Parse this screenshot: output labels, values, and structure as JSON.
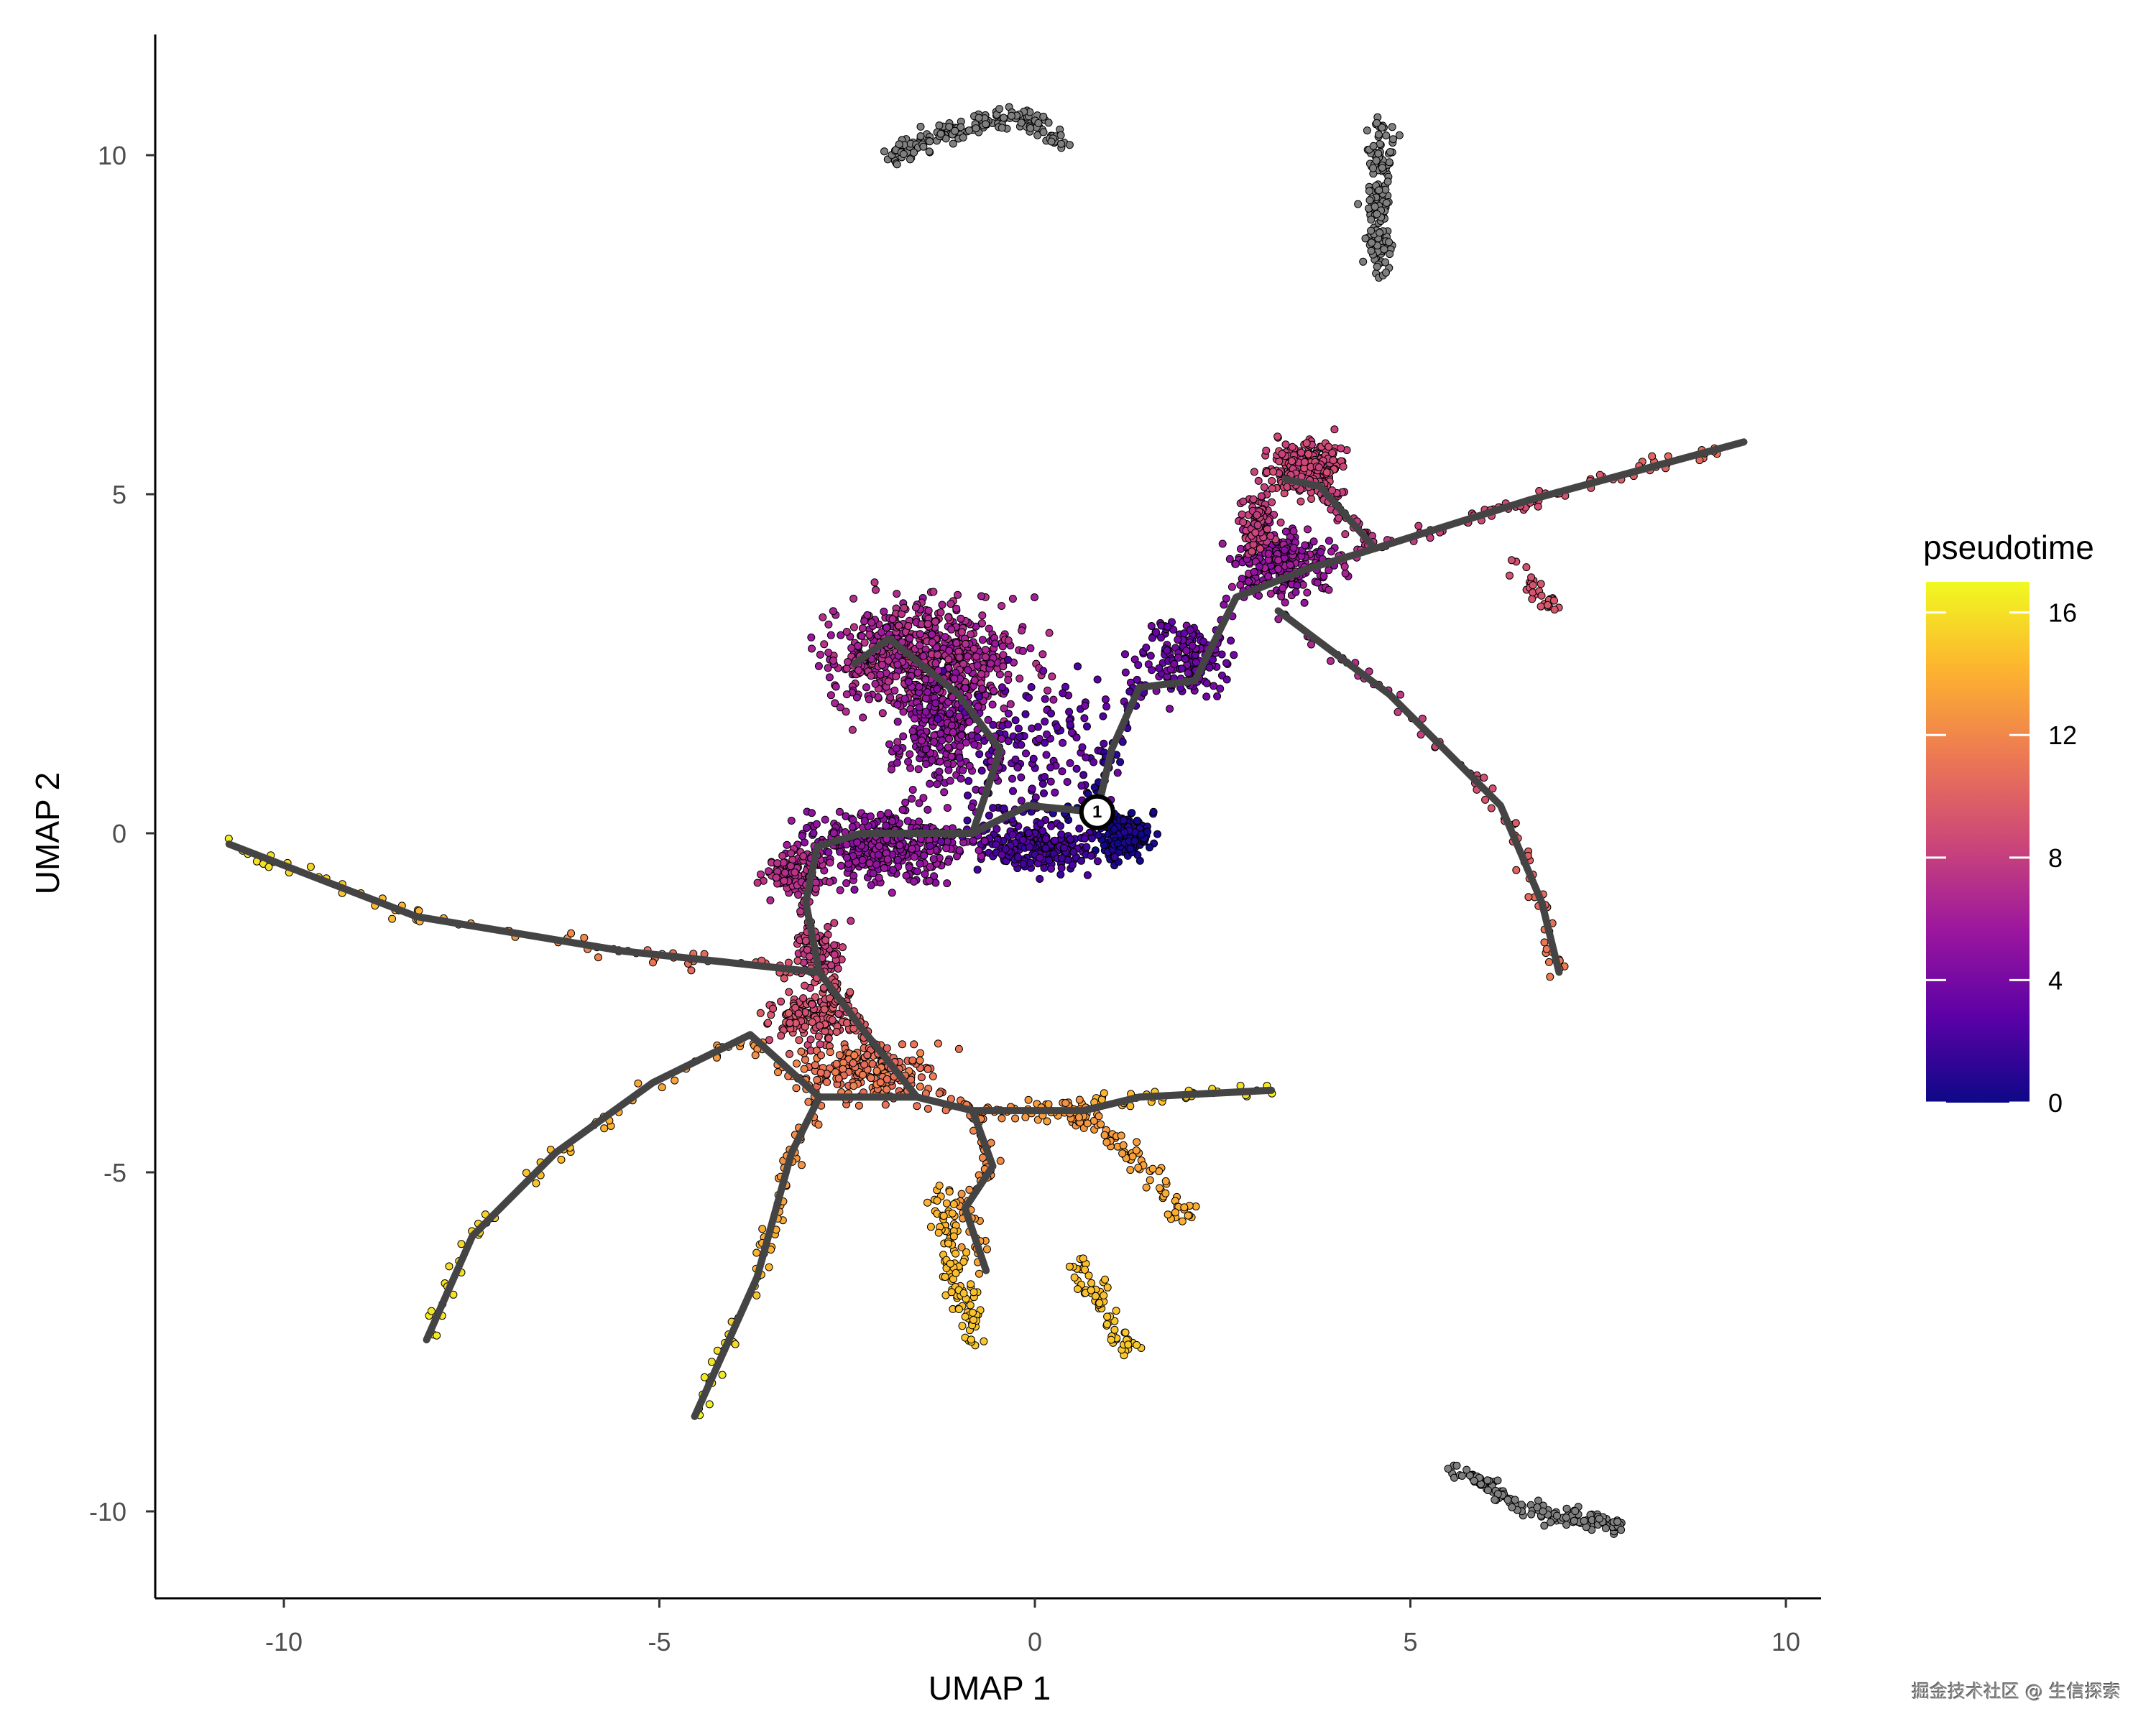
{
  "chart_data": {
    "type": "scatter",
    "title": "",
    "xlabel": "UMAP 1",
    "ylabel": "UMAP 2",
    "xlim": [
      -11.8,
      10.5
    ],
    "ylim": [
      -11.2,
      11.8
    ],
    "x_ticks": [
      -10,
      -5,
      0,
      5,
      10
    ],
    "y_ticks": [
      10,
      5,
      0,
      -5,
      -10
    ],
    "x_tick_labels": [
      "-10",
      "-5",
      "0",
      "5",
      "10"
    ],
    "y_tick_labels": [
      "10",
      "5",
      "0",
      "-5",
      "-10"
    ],
    "grid": false,
    "legend": {
      "title": "pseudotime",
      "placement": "right",
      "type": "colorbar",
      "range": [
        0,
        17
      ],
      "ticks": [
        0,
        4,
        8,
        12,
        16
      ],
      "tick_labels": [
        "0",
        "4",
        "8",
        "12",
        "16"
      ],
      "colormap": "plasma",
      "colors": [
        "#0d0887",
        "#5c01a6",
        "#9c179e",
        "#cc4778",
        "#ed7953",
        "#fdb42f",
        "#f0f921"
      ]
    },
    "na_color": "#7f7f7f",
    "trajectory_color": "#444444",
    "root_node": {
      "label": "1",
      "x": 0.83,
      "y": 0.31
    },
    "trajectory_edges": [
      {
        "path": [
          [
            0.83,
            0.31
          ],
          [
            -0.09,
            0.41
          ],
          [
            -0.83,
            0.0
          ],
          [
            -2.31,
            0.0
          ],
          [
            -2.9,
            -0.2
          ],
          [
            -3.05,
            -1.02
          ],
          [
            -2.87,
            -2.05
          ]
        ],
        "pseudotime": [
          0,
          9
        ],
        "line": true
      },
      {
        "path": [
          [
            -2.87,
            -2.05
          ],
          [
            -2.31,
            -2.87
          ],
          [
            -1.57,
            -3.89
          ]
        ],
        "pseudotime": [
          9,
          11
        ],
        "line": true
      },
      {
        "path": [
          [
            -2.87,
            -2.05
          ],
          [
            -5.46,
            -1.74
          ],
          [
            -8.23,
            -1.23
          ],
          [
            -10.73,
            -0.16
          ]
        ],
        "pseudotime": [
          9,
          16.5
        ],
        "line": true
      },
      {
        "path": [
          [
            -0.83,
            0.0
          ],
          [
            -0.46,
            1.23
          ],
          [
            -1.02,
            2.05
          ],
          [
            -1.94,
            2.87
          ],
          [
            -2.4,
            2.5
          ]
        ],
        "pseudotime": [
          4,
          7
        ],
        "line": true
      },
      {
        "path": [
          [
            0.83,
            0.31
          ],
          [
            1.02,
            1.23
          ],
          [
            1.39,
            2.15
          ],
          [
            2.13,
            2.25
          ],
          [
            2.68,
            3.48
          ],
          [
            3.61,
            3.89
          ],
          [
            4.53,
            4.2
          ]
        ],
        "pseudotime": [
          0,
          7.5
        ],
        "line": true
      },
      {
        "path": [
          [
            4.53,
            4.2
          ],
          [
            6.57,
            4.91
          ],
          [
            9.44,
            5.77
          ]
        ],
        "pseudotime": [
          7.5,
          11
        ],
        "line": true
      },
      {
        "path": [
          [
            4.53,
            4.2
          ],
          [
            3.79,
            5.12
          ],
          [
            3.33,
            5.22
          ]
        ],
        "pseudotime": [
          7.5,
          8.5
        ],
        "line": true
      },
      {
        "path": [
          [
            3.24,
            3.28
          ],
          [
            4.72,
            2.05
          ],
          [
            6.2,
            0.41
          ],
          [
            6.75,
            -1.02
          ],
          [
            6.98,
            -2.05
          ]
        ],
        "pseudotime": [
          6,
          11.5
        ],
        "line": true
      },
      {
        "path": [
          [
            -1.57,
            -3.89
          ],
          [
            -2.87,
            -3.89
          ],
          [
            -3.79,
            -2.97
          ],
          [
            -5.09,
            -3.68
          ],
          [
            -6.38,
            -4.71
          ],
          [
            -7.49,
            -5.94
          ],
          [
            -8.1,
            -7.47
          ]
        ],
        "pseudotime": [
          11,
          16.5
        ],
        "line": true
      },
      {
        "path": [
          [
            -2.87,
            -3.89
          ],
          [
            -3.24,
            -4.71
          ],
          [
            -3.7,
            -6.55
          ],
          [
            -4.53,
            -8.6
          ]
        ],
        "pseudotime": [
          11.5,
          17
        ],
        "line": true
      },
      {
        "path": [
          [
            -1.57,
            -3.89
          ],
          [
            -0.83,
            -4.09
          ],
          [
            -0.56,
            -4.91
          ],
          [
            -0.93,
            -5.53
          ],
          [
            -0.65,
            -6.45
          ]
        ],
        "pseudotime": [
          11,
          13.5
        ],
        "line": true
      },
      {
        "path": [
          [
            -0.83,
            -4.09
          ],
          [
            0.65,
            -4.09
          ],
          [
            1.39,
            -3.89
          ],
          [
            3.15,
            -3.79
          ]
        ],
        "pseudotime": [
          12,
          16.5
        ],
        "line": true
      }
    ],
    "cell_groups": [
      {
        "center": [
          -1.5,
          2.6
        ],
        "spread": [
          1.1,
          0.75
        ],
        "n": 650,
        "pseudotime": [
          5.5,
          7.5
        ]
      },
      {
        "center": [
          -1.3,
          1.5
        ],
        "spread": [
          0.5,
          0.7
        ],
        "n": 220,
        "pseudotime": [
          4.5,
          6
        ]
      },
      {
        "center": [
          0.1,
          1.2
        ],
        "spread": [
          0.9,
          1.0
        ],
        "n": 160,
        "pseudotime": [
          2,
          4
        ]
      },
      {
        "center": [
          1.2,
          -0.05
        ],
        "spread": [
          0.28,
          0.28
        ],
        "n": 200,
        "pseudotime": [
          0,
          1
        ]
      },
      {
        "center": [
          0.0,
          -0.2
        ],
        "spread": [
          0.7,
          0.3
        ],
        "n": 220,
        "pseudotime": [
          1.5,
          3
        ]
      },
      {
        "center": [
          -2.0,
          -0.2
        ],
        "spread": [
          0.9,
          0.45
        ],
        "n": 350,
        "pseudotime": [
          4.5,
          6
        ]
      },
      {
        "center": [
          -3.2,
          -0.6
        ],
        "spread": [
          0.35,
          0.3
        ],
        "n": 120,
        "pseudotime": [
          6.5,
          7.5
        ]
      },
      {
        "center": [
          -2.9,
          -1.7
        ],
        "spread": [
          0.3,
          0.4
        ],
        "n": 80,
        "pseudotime": [
          7.5,
          8.5
        ]
      },
      {
        "center": [
          -3.0,
          -2.7
        ],
        "spread": [
          0.45,
          0.35
        ],
        "n": 140,
        "pseudotime": [
          8.5,
          10
        ]
      },
      {
        "center": [
          -2.3,
          -3.5
        ],
        "spread": [
          0.8,
          0.35
        ],
        "n": 180,
        "pseudotime": [
          10.5,
          12
        ]
      },
      {
        "center": [
          2.0,
          2.6
        ],
        "spread": [
          0.5,
          0.5
        ],
        "n": 160,
        "pseudotime": [
          3,
          4.5
        ]
      },
      {
        "center": [
          3.3,
          4.0
        ],
        "spread": [
          0.6,
          0.4
        ],
        "n": 220,
        "pseudotime": [
          4.5,
          6.5
        ]
      },
      {
        "center": [
          3.6,
          5.4
        ],
        "spread": [
          0.45,
          0.35
        ],
        "n": 260,
        "pseudotime": [
          8,
          9
        ]
      },
      {
        "center": [
          2.95,
          4.6
        ],
        "spread": [
          0.2,
          0.4
        ],
        "n": 80,
        "pseudotime": [
          7.5,
          8.5
        ]
      }
    ],
    "point_segments": [
      {
        "path": [
          [
            6.3,
            3.9
          ],
          [
            6.9,
            3.35
          ]
        ],
        "n": 30,
        "pseudotime": [
          9,
          9.5
        ],
        "spread": 0.08
      },
      {
        "path": [
          [
            0.5,
            -6.3
          ],
          [
            1.3,
            -7.7
          ]
        ],
        "n": 70,
        "pseudotime": [
          14.5,
          15
        ],
        "spread": 0.08
      },
      {
        "path": [
          [
            -1.2,
            -5.3
          ],
          [
            -1.1,
            -6.4
          ],
          [
            -0.75,
            -7.5
          ]
        ],
        "n": 110,
        "pseudotime": [
          14,
          15
        ],
        "spread": 0.1
      },
      {
        "path": [
          [
            0.4,
            -4.0
          ],
          [
            1.3,
            -4.7
          ],
          [
            2.0,
            -5.7
          ]
        ],
        "n": 90,
        "pseudotime": [
          12.5,
          14
        ],
        "spread": 0.1
      }
    ],
    "unassigned_groups": [
      {
        "path": [
          [
            -1.9,
            10.0
          ],
          [
            -1.0,
            10.4
          ],
          [
            -0.2,
            10.6
          ],
          [
            0.4,
            10.2
          ]
        ],
        "n": 160,
        "spread": 0.08
      },
      {
        "path": [
          [
            4.6,
            8.3
          ],
          [
            4.55,
            9.2
          ],
          [
            4.6,
            10.0
          ],
          [
            4.6,
            10.5
          ]
        ],
        "n": 160,
        "spread": 0.09
      },
      {
        "path": [
          [
            5.6,
            -9.4
          ],
          [
            6.4,
            -9.9
          ],
          [
            7.0,
            -10.1
          ],
          [
            7.8,
            -10.2
          ]
        ],
        "n": 150,
        "spread": 0.07
      }
    ]
  },
  "watermark": "掘金技术社区 @ 生信探索"
}
